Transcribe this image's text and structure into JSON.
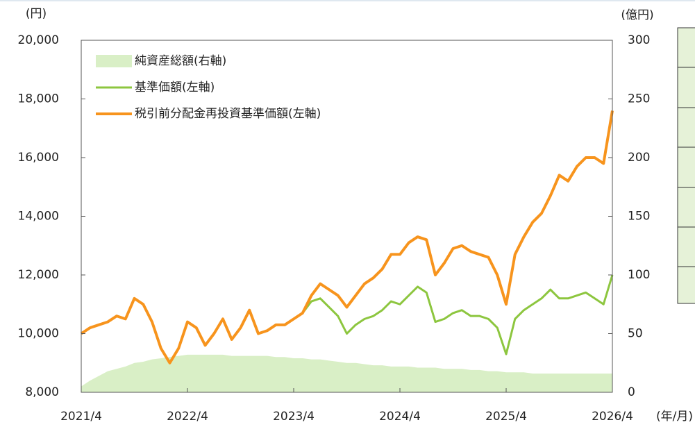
{
  "chart_data": {
    "type": "line",
    "y_label": "(円)",
    "y2_label": "(億円)",
    "x_label": "(年/月)",
    "categories": [
      "2021/4",
      null,
      null,
      null,
      null,
      null,
      null,
      null,
      null,
      null,
      null,
      null,
      "2022/4",
      null,
      null,
      null,
      null,
      null,
      null,
      null,
      null,
      null,
      null,
      null,
      "2023/4",
      null,
      null,
      null,
      null,
      null,
      null,
      null,
      null,
      null,
      null,
      null,
      "2024/4",
      null,
      null,
      null,
      null,
      null,
      null,
      null,
      null,
      null,
      null,
      null,
      "2025/4",
      null,
      null,
      null,
      null,
      null,
      null,
      null,
      null,
      null,
      null,
      null,
      "2026/4"
    ],
    "series": [
      {
        "name": "純資産総額(右軸)",
        "kind": "area",
        "axis": "y2",
        "color": "#d9efc6",
        "values": [
          5,
          10,
          14,
          18,
          20,
          22,
          25,
          26,
          28,
          29,
          30,
          31,
          32,
          32,
          32,
          32,
          32,
          31,
          31,
          31,
          31,
          31,
          30,
          30,
          29,
          29,
          28,
          28,
          27,
          26,
          25,
          25,
          24,
          23,
          23,
          22,
          22,
          22,
          21,
          21,
          21,
          20,
          20,
          20,
          19,
          19,
          18,
          18,
          17,
          17,
          17,
          16,
          16,
          16,
          16,
          16,
          16,
          16,
          16,
          16,
          16
        ]
      },
      {
        "name": "基準価額(左軸)",
        "kind": "line",
        "color": "#8dc63f",
        "values": [
          10000,
          10200,
          10300,
          10400,
          10600,
          10500,
          11200,
          11000,
          10400,
          9500,
          9000,
          9500,
          10400,
          10200,
          9600,
          10000,
          10500,
          9800,
          10200,
          10800,
          10000,
          10100,
          10300,
          10300,
          10500,
          10700,
          11100,
          11200,
          10900,
          10600,
          10000,
          10300,
          10500,
          10600,
          10800,
          11100,
          11000,
          11300,
          11600,
          11400,
          10400,
          10500,
          10700,
          10800,
          10600,
          10600,
          10500,
          10200,
          9300,
          10500,
          10800,
          11000,
          11200,
          11500,
          11200,
          11200,
          11300,
          11400,
          11200,
          11000,
          12000
        ]
      },
      {
        "name": "税引前分配金再投資基準価額(左軸)",
        "kind": "line",
        "color": "#f7941d",
        "values": [
          10000,
          10200,
          10300,
          10400,
          10600,
          10500,
          11200,
          11000,
          10400,
          9500,
          9000,
          9500,
          10400,
          10200,
          9600,
          10000,
          10500,
          9800,
          10200,
          10800,
          10000,
          10100,
          10300,
          10300,
          10500,
          10700,
          11300,
          11700,
          11500,
          11300,
          10900,
          11300,
          11700,
          11900,
          12200,
          12700,
          12700,
          13100,
          13300,
          13200,
          12000,
          12400,
          12900,
          13000,
          12800,
          12700,
          12600,
          12000,
          11000,
          12700,
          13300,
          13800,
          14100,
          14700,
          15400,
          15200,
          15700,
          16000,
          16000,
          15800,
          17600
        ]
      }
    ],
    "ylim": [
      8000,
      20000
    ],
    "yticks": [
      {
        "value": 8000,
        "label": "8,000"
      },
      {
        "value": 10000,
        "label": "10,000"
      },
      {
        "value": 12000,
        "label": "12,000"
      },
      {
        "value": 14000,
        "label": "14,000"
      },
      {
        "value": 16000,
        "label": "16,000"
      },
      {
        "value": 18000,
        "label": "18,000"
      },
      {
        "value": 20000,
        "label": "20,000"
      }
    ],
    "y2lim": [
      0,
      300
    ],
    "y2ticks": [
      0,
      50,
      100,
      150,
      200,
      250,
      300
    ],
    "legend": "upper left"
  }
}
